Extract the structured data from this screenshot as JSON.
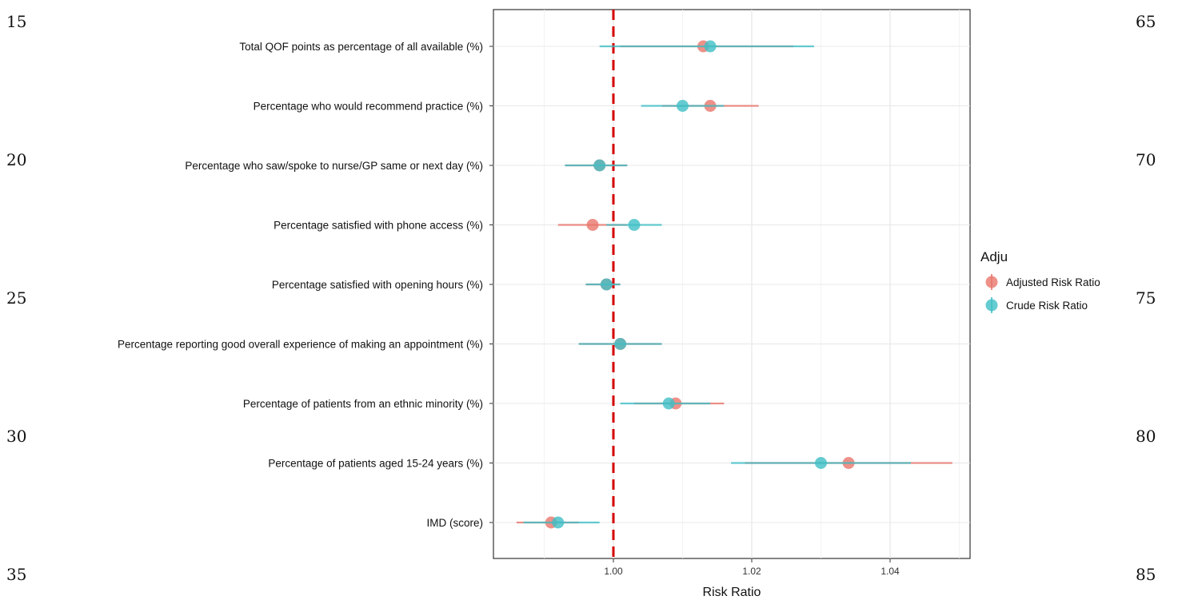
{
  "line_numbers": {
    "left": [
      "15",
      "20",
      "25",
      "30",
      "35"
    ],
    "right": [
      "65",
      "70",
      "75",
      "80",
      "85"
    ]
  },
  "chart_data": {
    "type": "forest",
    "title": "",
    "xlabel": "Risk Ratio",
    "ylabel": "",
    "xlim": [
      0.9825,
      1.0525
    ],
    "xticks": [
      1.0,
      1.02,
      1.04
    ],
    "xtick_labels": [
      "1.00",
      "1.02",
      "1.04"
    ],
    "reference_line": 1.0,
    "reference_color": "#d40000",
    "grid": true,
    "legend": {
      "title": "Adju",
      "position": "right",
      "items": [
        "Adjusted Risk Ratio",
        "Crude Risk Ratio"
      ]
    },
    "categories": [
      "Total QOF points as percentage of all available (%)",
      "Percentage who would recommend practice (%)",
      "Percentage who saw/spoke to nurse/GP same or next day (%)",
      "Percentage satisfied with phone access (%)",
      "Percentage satisfied with opening hours (%)",
      "Percentage reporting good overall experience of making an appointment (%)",
      "Percentage of patients from an ethnic minority (%)",
      "Percentage of patients aged 15-24 years (%)",
      "IMD (score)"
    ],
    "series": [
      {
        "name": "Adjusted Risk Ratio",
        "color": "#e8756c",
        "points": [
          {
            "est": 1.013,
            "lo": 1.001,
            "hi": 1.026
          },
          {
            "est": 1.014,
            "lo": 1.007,
            "hi": 1.021
          },
          {
            "est": 0.998,
            "lo": 0.993,
            "hi": 1.002
          },
          {
            "est": 0.997,
            "lo": 0.992,
            "hi": 1.002
          },
          {
            "est": 0.999,
            "lo": 0.996,
            "hi": 1.001
          },
          {
            "est": 1.001,
            "lo": 0.995,
            "hi": 1.007
          },
          {
            "est": 1.009,
            "lo": 1.003,
            "hi": 1.016
          },
          {
            "est": 1.034,
            "lo": 1.019,
            "hi": 1.049
          },
          {
            "est": 0.991,
            "lo": 0.986,
            "hi": 0.995
          }
        ]
      },
      {
        "name": "Crude Risk Ratio",
        "color": "#3fbfc6",
        "points": [
          {
            "est": 1.014,
            "lo": 0.998,
            "hi": 1.029
          },
          {
            "est": 1.01,
            "lo": 1.004,
            "hi": 1.016
          },
          {
            "est": 0.998,
            "lo": 0.993,
            "hi": 1.002
          },
          {
            "est": 1.003,
            "lo": 0.999,
            "hi": 1.007
          },
          {
            "est": 0.999,
            "lo": 0.996,
            "hi": 1.001
          },
          {
            "est": 1.001,
            "lo": 0.995,
            "hi": 1.007
          },
          {
            "est": 1.008,
            "lo": 1.001,
            "hi": 1.014
          },
          {
            "est": 1.03,
            "lo": 1.017,
            "hi": 1.043
          },
          {
            "est": 0.992,
            "lo": 0.987,
            "hi": 0.998
          }
        ]
      }
    ]
  }
}
